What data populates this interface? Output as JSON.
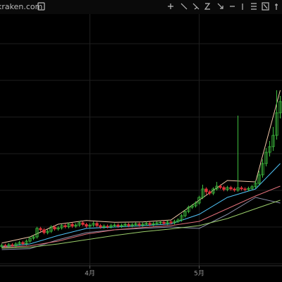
{
  "header": {
    "site": "kraken.com"
  },
  "chart_data": {
    "type": "candlestick",
    "categories": [
      null,
      null,
      null,
      null,
      null,
      null,
      null,
      null,
      null,
      null,
      null,
      null,
      null,
      null,
      null,
      null,
      null,
      null,
      null,
      null,
      null,
      null,
      null,
      null,
      null,
      "4月",
      null,
      null,
      null,
      null,
      null,
      null,
      null,
      null,
      null,
      null,
      null,
      null,
      null,
      null,
      null,
      null,
      null,
      null,
      null,
      null,
      null,
      null,
      null,
      null,
      null,
      null,
      null,
      null,
      null,
      null,
      "5月",
      null,
      null,
      null,
      null,
      null,
      null,
      null,
      null,
      null,
      null,
      null,
      null,
      null,
      null,
      null,
      null,
      null,
      null,
      null,
      null,
      null,
      null,
      null
    ],
    "open": [
      12.6,
      13,
      12.8,
      13.2,
      12.9,
      13.5,
      14,
      13.6,
      14.5,
      15.5,
      16,
      19,
      18.5,
      17.5,
      18,
      19.5,
      18.8,
      19.2,
      20,
      19.6,
      20.5,
      19.8,
      20.2,
      21,
      20.4,
      19.8,
      20.2,
      20.8,
      20,
      19.5,
      19.8,
      19.6,
      20,
      20.2,
      19.8,
      20.1,
      20.4,
      20,
      20.3,
      20.6,
      20.2,
      20.5,
      20.8,
      20.4,
      20.7,
      21,
      21.2,
      20.8,
      21.3,
      21,
      21.5,
      22,
      23.5,
      25,
      26.5,
      27,
      28,
      30,
      33,
      32,
      31.5,
      33,
      34,
      33.5,
      32.8,
      33.5,
      33,
      32.6,
      33.4,
      33,
      32.8,
      33.2,
      33.8,
      35,
      38,
      42,
      46,
      48,
      52,
      60
    ],
    "high": [
      13.6,
      13.6,
      13.8,
      13.8,
      14.1,
      14.6,
      14.6,
      15.1,
      16.1,
      16.6,
      19.6,
      19.6,
      19.1,
      18.6,
      20.1,
      20.1,
      19.8,
      20.6,
      20.6,
      21.1,
      21.1,
      20.8,
      21.6,
      21.6,
      21,
      20.8,
      21.4,
      21.4,
      20.6,
      20.4,
      20.4,
      20.6,
      20.8,
      20.8,
      20.7,
      21,
      21,
      20.9,
      21.2,
      21.2,
      21.1,
      21.4,
      21.4,
      21.3,
      21.6,
      21.8,
      21.8,
      21.9,
      21.9,
      22.1,
      22.6,
      24.1,
      25.6,
      27.1,
      27.6,
      28.6,
      30.6,
      34.5,
      33.6,
      32.6,
      33.6,
      35.5,
      34.6,
      34.1,
      34.1,
      34.1,
      33.6,
      59,
      34,
      33.6,
      33.8,
      34.4,
      36,
      39.5,
      43.5,
      47.5,
      50,
      55,
      68,
      66
    ],
    "low": [
      12,
      12.2,
      12.2,
      12.3,
      12.3,
      12.9,
      13,
      13,
      13.9,
      14.9,
      15.4,
      17.9,
      16.9,
      16.9,
      17.4,
      18.2,
      18.2,
      18.6,
      19,
      19,
      19.2,
      19.2,
      19.6,
      19.8,
      19.2,
      19.2,
      19.6,
      19.4,
      18.9,
      18.9,
      19,
      19,
      19.4,
      19.2,
      19.2,
      19.5,
      19.4,
      19.4,
      19.7,
      19.6,
      19.6,
      19.9,
      19.8,
      19.8,
      20.1,
      20.4,
      20.2,
      20.2,
      20.4,
      20.4,
      20.9,
      21.4,
      22.9,
      24.4,
      25.9,
      26.4,
      27.4,
      29.4,
      31,
      30.8,
      30.8,
      32.4,
      32.9,
      32.2,
      32.2,
      32.4,
      32,
      32,
      32.4,
      32.2,
      32.2,
      32.6,
      33.2,
      34.4,
      37,
      41,
      44.5,
      46.5,
      50.5,
      58
    ],
    "close": [
      13,
      12.8,
      13.2,
      12.9,
      13.5,
      14,
      13.6,
      14.5,
      15.5,
      16,
      19,
      18.5,
      17.5,
      18,
      19.5,
      18.8,
      19.2,
      20,
      19.6,
      20.5,
      19.8,
      20.2,
      21,
      20.4,
      19.8,
      20.2,
      20.8,
      20,
      19.5,
      19.8,
      19.6,
      20,
      20.2,
      19.8,
      20.1,
      20.4,
      20,
      20.3,
      20.6,
      20.2,
      20.5,
      20.8,
      20.4,
      20.7,
      21,
      21.2,
      20.8,
      21.3,
      21,
      21.5,
      22,
      23.5,
      25,
      26.5,
      27,
      28,
      30,
      33,
      32,
      31.5,
      33,
      34,
      33.5,
      32.8,
      33.5,
      33,
      32.6,
      33.4,
      33,
      32.8,
      33.2,
      33.8,
      35,
      38,
      42,
      46,
      48,
      52,
      60,
      64
    ],
    "up_color": "#3fbf3f",
    "down_color": "#e0323a",
    "ylim": [
      0,
      100
    ],
    "lines": [
      {
        "color": "#f2c8a8",
        "x": [
          0,
          8,
          16,
          24,
          32,
          40,
          48,
          56,
          64,
          72,
          79
        ],
        "values": [
          13.8,
          16,
          20.5,
          21.8,
          21.2,
          21.3,
          22,
          29,
          36,
          35.5,
          68
        ]
      },
      {
        "color": "#8a8fa8",
        "x": [
          0,
          8,
          16,
          24,
          32,
          40,
          48,
          56,
          64,
          72,
          79
        ],
        "values": [
          11.5,
          11.8,
          15,
          17.5,
          18.5,
          19,
          19.5,
          19,
          24,
          30,
          28
        ]
      },
      {
        "color": "#4fc3f7",
        "x": [
          0,
          8,
          16,
          24,
          32,
          40,
          48,
          56,
          64,
          72,
          79
        ],
        "values": [
          12.5,
          13.5,
          16.5,
          19,
          19.5,
          20,
          20.6,
          24,
          30,
          33,
          42
        ]
      },
      {
        "color": "#e0707a",
        "x": [
          0,
          8,
          16,
          24,
          32,
          40,
          48,
          56,
          64,
          72,
          79
        ],
        "values": [
          12.3,
          12.8,
          14.5,
          17,
          18.5,
          19.3,
          20,
          21.5,
          26,
          30.5,
          34
        ]
      },
      {
        "color": "#9acd6a",
        "x": [
          0,
          8,
          16,
          24,
          32,
          40,
          48,
          56,
          64,
          72,
          79
        ],
        "values": [
          12,
          12.3,
          13.5,
          15,
          16.5,
          17.8,
          18.8,
          20,
          22.5,
          26,
          29
        ]
      }
    ]
  }
}
